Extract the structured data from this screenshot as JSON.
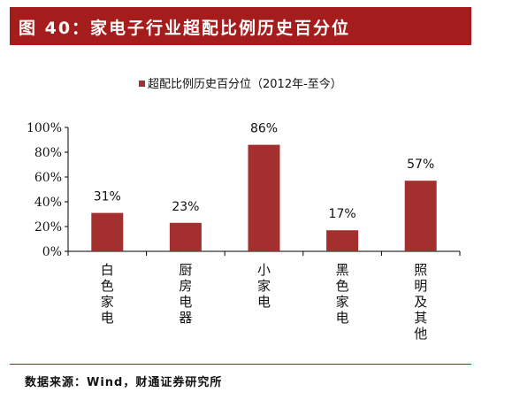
{
  "header": {
    "title": "图 40：家电子行业超配比例历史百分位"
  },
  "source": {
    "text": "数据来源：Wind，财通证券研究所"
  },
  "colors": {
    "accent": "#a51c1c",
    "bar": "#a3302e"
  },
  "chart_data": {
    "type": "bar",
    "legend": "超配比例历史百分位（2012年-至今）",
    "legend_position": "top-center",
    "categories": [
      "白色家电",
      "厨房电器",
      "小家电",
      "黑色家电",
      "照明及其他"
    ],
    "values": [
      31,
      23,
      86,
      17,
      57
    ],
    "value_labels": [
      "31%",
      "23%",
      "86%",
      "17%",
      "57%"
    ],
    "y_ticks": [
      "0%",
      "20%",
      "40%",
      "60%",
      "80%",
      "100%"
    ],
    "ylim": [
      0,
      100
    ],
    "grid": false
  }
}
